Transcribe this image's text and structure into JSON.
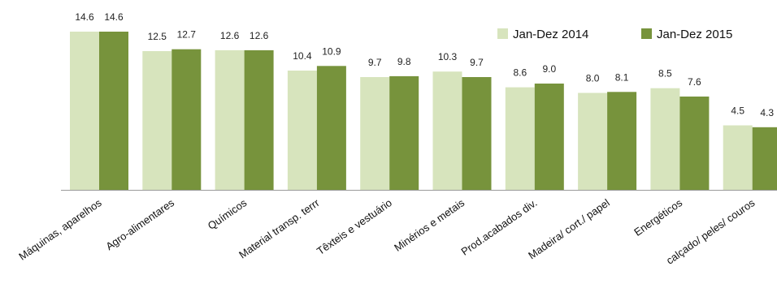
{
  "chart_data": {
    "type": "bar",
    "title": "",
    "xlabel": "",
    "ylabel": "",
    "ylim": [
      -2.5,
      15.5
    ],
    "legend_position": "top-right",
    "grid": false,
    "categories": [
      "Máquinas, aparelhos",
      "Agro-alimentares",
      "Químicos",
      "Material transp. terrr",
      "Têxteis e vestuário",
      "Minérios e metais",
      "Prod.acabados div.",
      "Madeira/ cort./ papel",
      "Energéticos",
      "calçado/ peles/ couros"
    ],
    "series": [
      {
        "name": "Jan-Dez 2014",
        "color": "#d7e4bd",
        "values": [
          14.6,
          12.5,
          12.6,
          10.4,
          9.7,
          10.3,
          8.6,
          8.0,
          8.5,
          4.5
        ],
        "labels": [
          "14.6",
          "12.5",
          "12.6",
          "10.4",
          "9.7",
          "10.3",
          "8.6",
          "8.0",
          "8.5",
          "4.5"
        ]
      },
      {
        "name": "Jan-Dez 2015",
        "color": "#77933c",
        "values": [
          14.6,
          12.7,
          12.6,
          10.9,
          9.8,
          9.7,
          9.0,
          8.1,
          7.6,
          4.3
        ],
        "labels": [
          "14.6",
          "12.7",
          "12.6",
          "10.9",
          "9.8",
          "9.7",
          "9.0",
          "8.1",
          "7.6",
          "4.3"
        ]
      }
    ]
  }
}
